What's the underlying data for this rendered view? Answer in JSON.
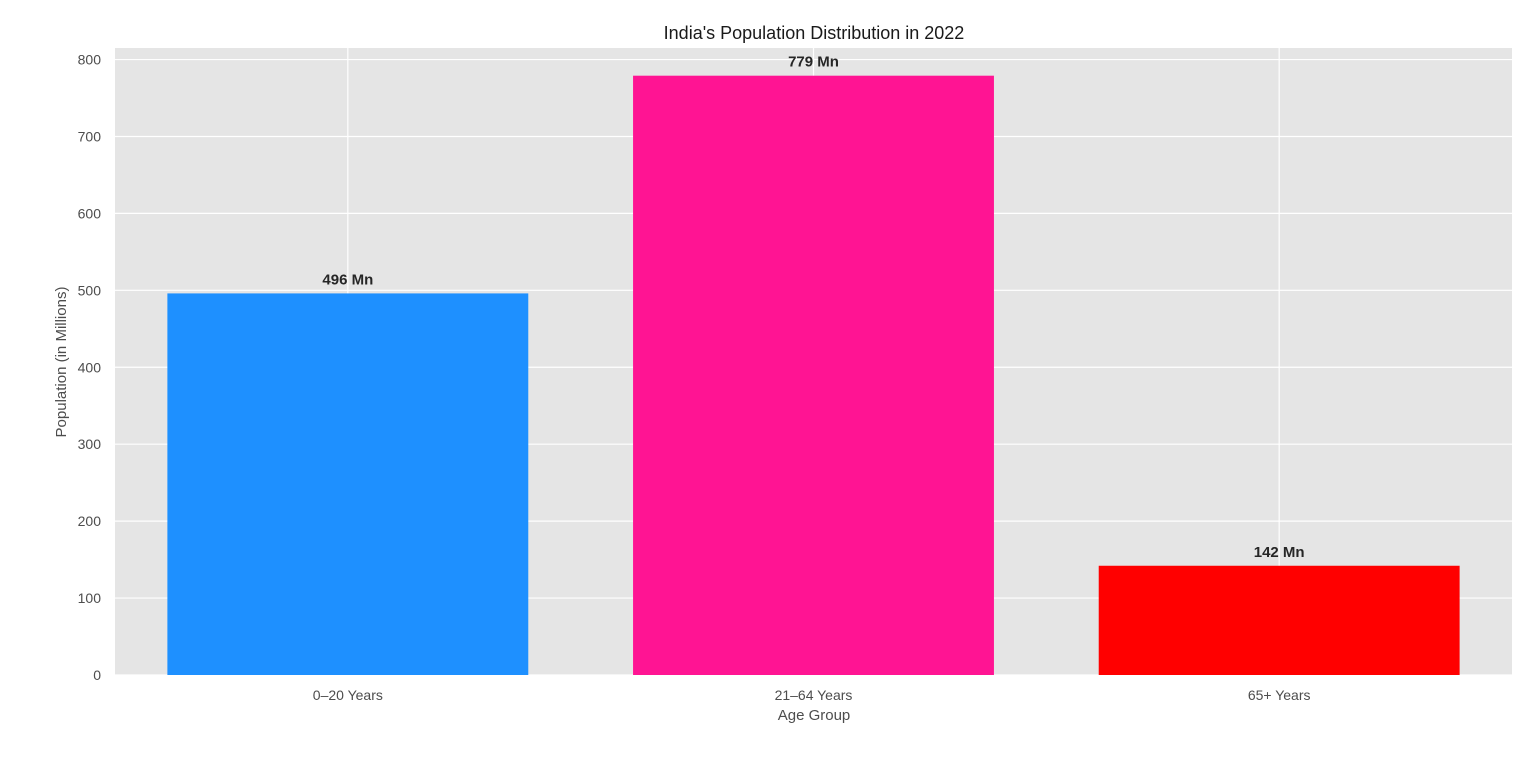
{
  "chart_data": {
    "type": "bar",
    "title": "India's Population Distribution in 2022",
    "xlabel": "Age Group",
    "ylabel": "Population (in Millions)",
    "categories": [
      "0–20 Years",
      "21–64 Years",
      "65+ Years"
    ],
    "values": [
      496,
      779,
      142
    ],
    "data_labels": [
      "496 Mn",
      "779 Mn",
      "142 Mn"
    ],
    "colors": [
      "#1e90ff",
      "#ff1493",
      "#ff0000"
    ],
    "ylim": [
      0,
      815
    ],
    "yticks": [
      0,
      100,
      200,
      300,
      400,
      500,
      600,
      700,
      800
    ],
    "grid": true,
    "background": "#e5e5e5",
    "grid_color": "#ffffff"
  }
}
